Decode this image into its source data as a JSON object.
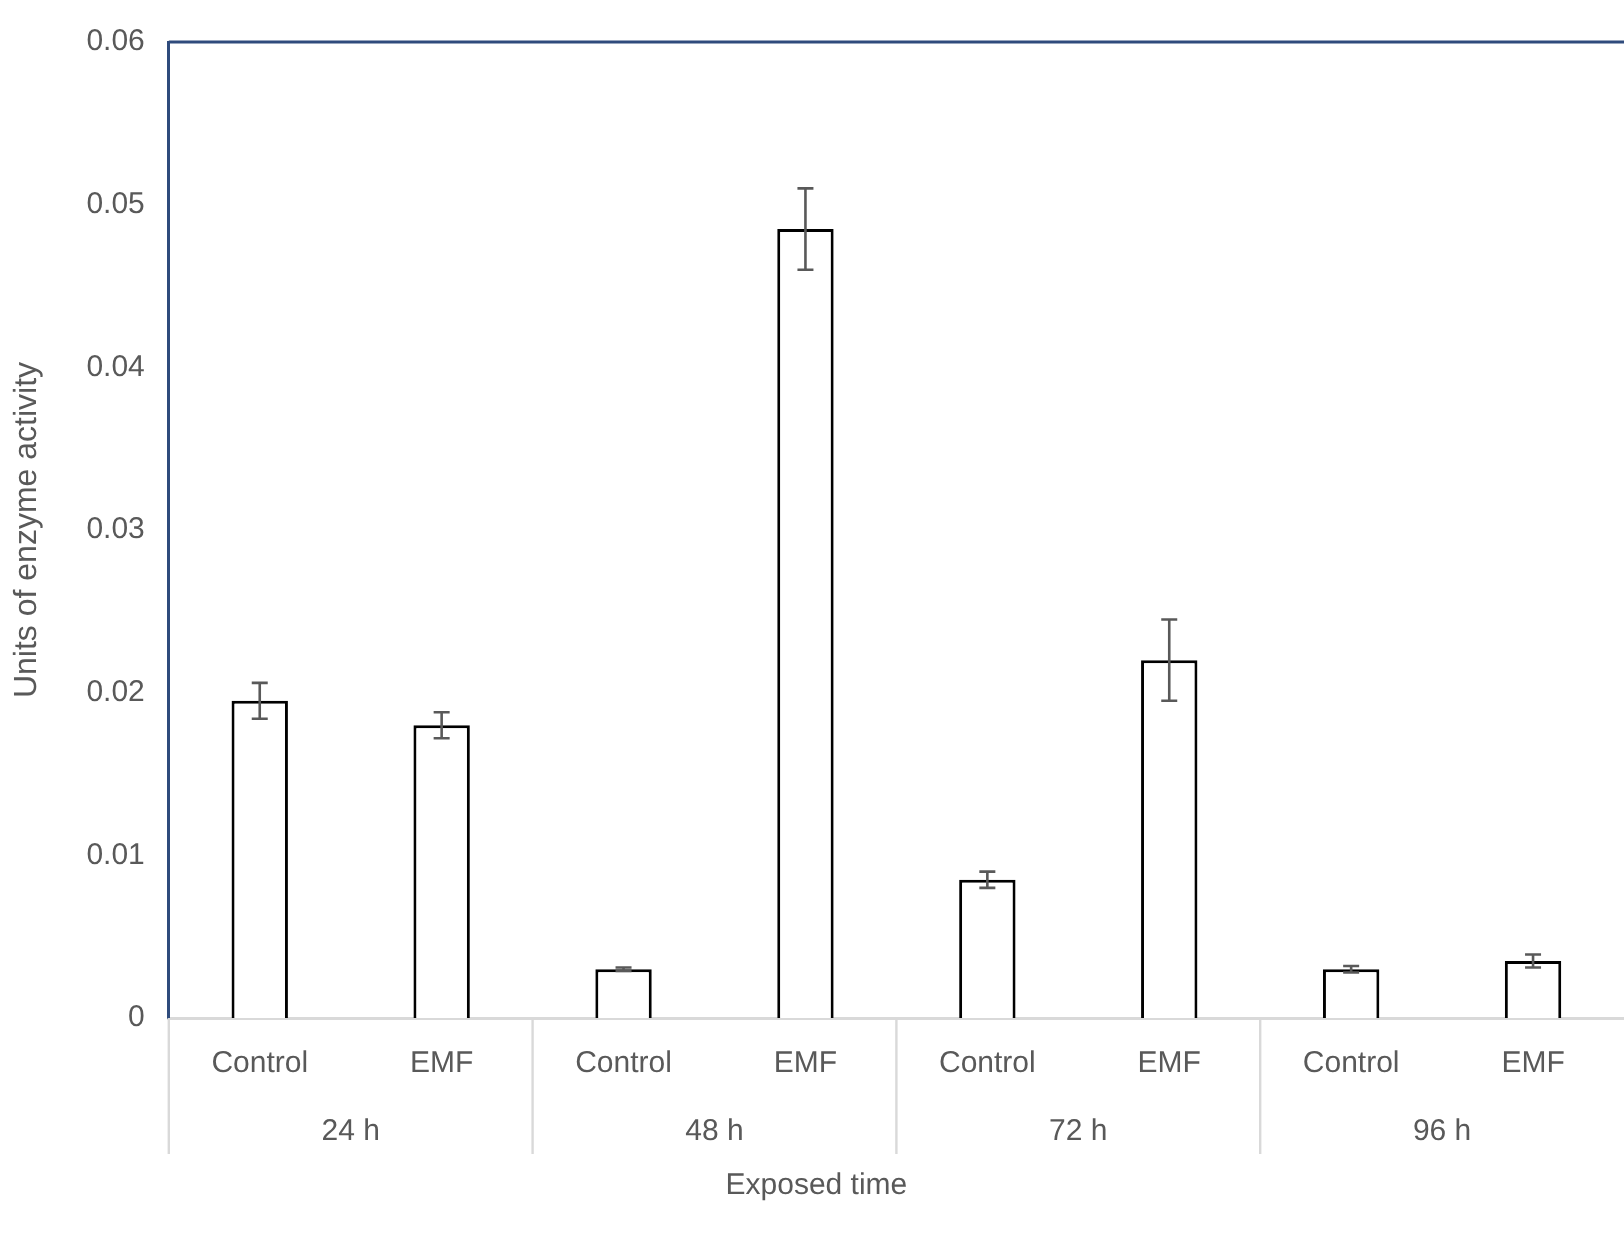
{
  "chart_data": {
    "type": "bar",
    "ylabel": "Units of enzyme activity",
    "xlabel": "Exposed time",
    "categories": [
      "Control",
      "EMF",
      "Control",
      "EMF",
      "Control",
      "EMF",
      "Control",
      "EMF"
    ],
    "values": [
      0.0195,
      0.018,
      0.003,
      0.0485,
      0.0085,
      0.022,
      0.003,
      0.0035
    ],
    "errors": [
      0.0011,
      0.0008,
      0.0001,
      0.0025,
      0.0005,
      0.0025,
      0.0002,
      0.0004
    ],
    "color": "#ffffff",
    "annotations": [
      "24 h",
      "48 h",
      "72 h",
      "96 h"
    ],
    "ylim": [
      0,
      0.06
    ],
    "yticks": [
      0,
      0.01,
      0.02,
      0.03,
      0.04,
      0.05,
      0.06
    ],
    "grid": false,
    "legend": false
  }
}
